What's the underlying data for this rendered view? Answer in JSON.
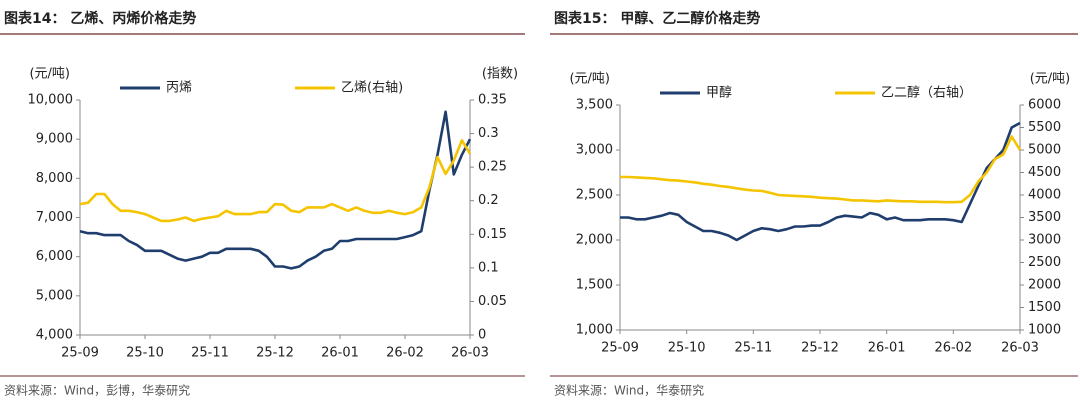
{
  "chart_data": [
    {
      "type": "line",
      "title": "图表14：  乙烯、丙烯价格走势",
      "source": "资料来源：Wind，彭博，华泰研究",
      "ylabel": "(元/吨)",
      "y2label": "(指数)",
      "categories": [
        "25-09",
        null,
        null,
        null,
        null,
        null,
        null,
        null,
        "25-10",
        null,
        null,
        null,
        null,
        null,
        null,
        null,
        "25-11",
        null,
        null,
        null,
        null,
        null,
        null,
        null,
        "25-12",
        null,
        null,
        null,
        null,
        null,
        null,
        null,
        "26-01",
        null,
        null,
        null,
        null,
        null,
        null,
        null,
        "26-02",
        null,
        null,
        null,
        null,
        null,
        null,
        null,
        "26-03"
      ],
      "ylim": [
        4000,
        10000
      ],
      "yticks": [
        {
          "value": 4000,
          "label": "4,000"
        },
        {
          "value": 5000,
          "label": "5,000"
        },
        {
          "value": 6000,
          "label": "6,000"
        },
        {
          "value": 7000,
          "label": "7,000"
        },
        {
          "value": 8000,
          "label": "8,000"
        },
        {
          "value": 9000,
          "label": "9,000"
        },
        {
          "value": 10000,
          "label": "10,000"
        }
      ],
      "y2lim": [
        0,
        0.35
      ],
      "y2ticks": [
        0,
        0.05,
        0.1,
        0.15,
        0.2,
        0.25,
        0.3,
        0.35
      ],
      "series": [
        {
          "name": "丙烯",
          "color": "#1f3e6e",
          "values": [
            6650,
            6600,
            6600,
            6550,
            6550,
            6550,
            6400,
            6300,
            6150,
            6150,
            6150,
            6050,
            5950,
            5900,
            5950,
            6000,
            6100,
            6100,
            6200,
            6200,
            6200,
            6200,
            6150,
            6000,
            5750,
            5750,
            5700,
            5750,
            5900,
            6000,
            6150,
            6200,
            6400,
            6400,
            6450,
            6450,
            6450,
            6450,
            6450,
            6450,
            6500,
            6550,
            6650,
            7700,
            8600,
            9700,
            8100,
            8600,
            9000
          ]
        },
        {
          "name": "乙烯(右轴)",
          "color": "#f5c400",
          "axis": "y2",
          "values": [
            0.195,
            0.197,
            0.21,
            0.21,
            0.195,
            0.185,
            0.185,
            0.183,
            0.18,
            0.175,
            0.17,
            0.17,
            0.172,
            0.175,
            0.17,
            0.173,
            0.175,
            0.177,
            0.185,
            0.18,
            0.18,
            0.18,
            0.183,
            0.183,
            0.195,
            0.194,
            0.185,
            0.183,
            0.19,
            0.19,
            0.19,
            0.195,
            0.19,
            0.185,
            0.19,
            0.185,
            0.182,
            0.182,
            0.185,
            0.182,
            0.18,
            0.183,
            0.19,
            0.22,
            0.265,
            0.24,
            0.26,
            0.29,
            0.27
          ]
        }
      ]
    },
    {
      "type": "line",
      "title": "图表15：  甲醇、乙二醇价格走势",
      "source": "资料来源：Wind，华泰研究",
      "ylabel": "(元/吨)",
      "y2label": "(元/吨)",
      "categories": [
        "25-09",
        null,
        null,
        null,
        null,
        null,
        null,
        null,
        "25-10",
        null,
        null,
        null,
        null,
        null,
        null,
        null,
        "25-11",
        null,
        null,
        null,
        null,
        null,
        null,
        null,
        "25-12",
        null,
        null,
        null,
        null,
        null,
        null,
        null,
        "26-01",
        null,
        null,
        null,
        null,
        null,
        null,
        null,
        "26-02",
        null,
        null,
        null,
        null,
        null,
        null,
        null,
        "26-03"
      ],
      "ylim": [
        1000,
        3500
      ],
      "yticks": [
        {
          "value": 1000,
          "label": "1,000"
        },
        {
          "value": 1500,
          "label": "1,500"
        },
        {
          "value": 2000,
          "label": "2,000"
        },
        {
          "value": 2500,
          "label": "2,500"
        },
        {
          "value": 3000,
          "label": "3,000"
        },
        {
          "value": 3500,
          "label": "3,500"
        }
      ],
      "y2lim": [
        1000,
        6000
      ],
      "y2ticks": [
        1000,
        1500,
        2000,
        2500,
        3000,
        3500,
        4000,
        4500,
        5000,
        5500,
        6000
      ],
      "series": [
        {
          "name": "甲醇",
          "color": "#1f3e6e",
          "values": [
            2250,
            2250,
            2230,
            2230,
            2250,
            2270,
            2300,
            2280,
            2200,
            2150,
            2100,
            2100,
            2080,
            2050,
            2000,
            2050,
            2100,
            2130,
            2120,
            2100,
            2120,
            2150,
            2150,
            2160,
            2160,
            2200,
            2250,
            2270,
            2260,
            2250,
            2300,
            2280,
            2230,
            2250,
            2220,
            2220,
            2220,
            2230,
            2230,
            2230,
            2220,
            2200,
            2400,
            2600,
            2800,
            2900,
            3000,
            3250,
            3300
          ]
        },
        {
          "name": "乙二醇（右轴）",
          "color": "#f5c400",
          "axis": "y2",
          "values": [
            4400,
            4400,
            4390,
            4380,
            4370,
            4350,
            4330,
            4320,
            4300,
            4280,
            4250,
            4230,
            4200,
            4180,
            4150,
            4120,
            4100,
            4090,
            4050,
            4000,
            3990,
            3980,
            3970,
            3960,
            3940,
            3930,
            3920,
            3900,
            3880,
            3880,
            3870,
            3860,
            3880,
            3870,
            3860,
            3860,
            3850,
            3850,
            3850,
            3840,
            3840,
            3850,
            4000,
            4300,
            4500,
            4800,
            4900,
            5300,
            5000
          ]
        }
      ]
    }
  ]
}
